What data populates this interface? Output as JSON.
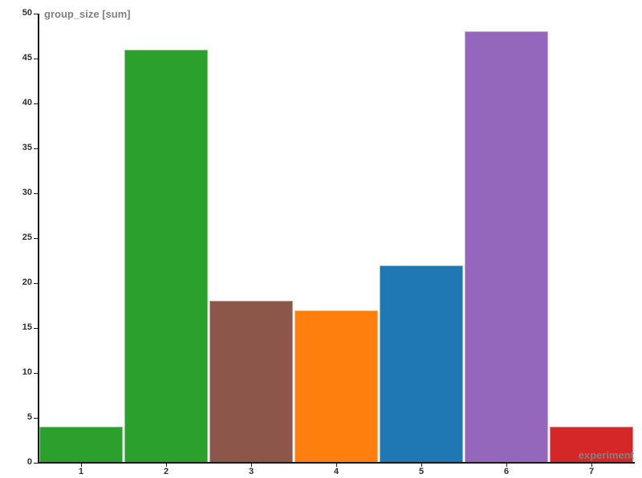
{
  "chart_data": {
    "type": "bar",
    "title": "",
    "ylabel": "group_size [sum]",
    "xlabel": "experiment",
    "categories": [
      "1",
      "2",
      "3",
      "4",
      "5",
      "6",
      "7"
    ],
    "values": [
      4,
      46,
      18,
      17,
      22,
      48,
      4
    ],
    "series": [
      {
        "name": "group_size [sum]",
        "values": [
          4,
          46,
          18,
          17,
          22,
          48,
          4
        ]
      }
    ],
    "bar_colors": [
      "#2ca02c",
      "#2ca02c",
      "#8c564b",
      "#ff7f0e",
      "#1f77b4",
      "#9467bd",
      "#d62728"
    ],
    "yticks": [
      0,
      5,
      10,
      15,
      20,
      25,
      30,
      35,
      40,
      45,
      50
    ],
    "ylim": [
      0,
      50
    ],
    "xlim_categories": [
      "1",
      "7"
    ],
    "grid": false,
    "legend_position": "none",
    "axis_color": "#1a1a1a",
    "tick_label_color": "#2e2e2e",
    "axis_title_color": "#808080"
  }
}
